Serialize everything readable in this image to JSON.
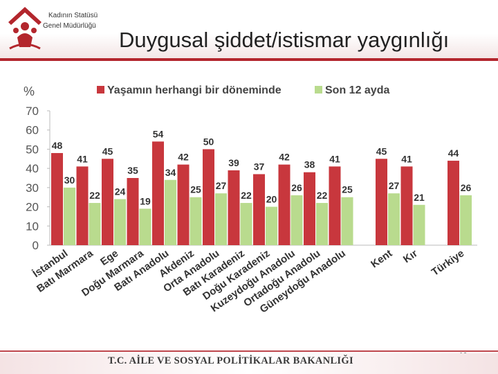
{
  "header": {
    "org_line1": "Kadının Statüsü",
    "org_line2": "Genel Müdürlüğü",
    "title": "Duygusal şiddet/istismar yaygınlığı"
  },
  "footer": {
    "ministry": "T.C. AİLE VE SOSYAL POLİTİKALAR BAKANLIĞI",
    "page_number": "16"
  },
  "colors": {
    "brand": "#b3262d",
    "series_lifetime": "#c8373d",
    "series_last12": "#b9db8e"
  },
  "chart_data": {
    "type": "bar",
    "ylabel": "%",
    "ylim": [
      0,
      70
    ],
    "yticks": [
      0,
      10,
      20,
      30,
      40,
      50,
      60,
      70
    ],
    "legend_position": "top",
    "categories": [
      "İstanbul",
      "Batı Marmara",
      "Ege",
      "Doğu Marmara",
      "Batı Anadolu",
      "Akdeniz",
      "Orta Anadolu",
      "Batı Karadeniz",
      "Doğu Karadeniz",
      "Kuzeydoğu Anadolu",
      "Ortadoğu Anadolu",
      "Güneydoğu Anadolu",
      "Kent",
      "Kır",
      "Türkiye"
    ],
    "groups_gap_before": [
      12,
      14
    ],
    "series": [
      {
        "name": "Yaşamın herhangi bir döneminde",
        "values": [
          48,
          41,
          45,
          35,
          54,
          42,
          50,
          39,
          37,
          42,
          38,
          41,
          45,
          41,
          44
        ]
      },
      {
        "name": "Son 12 ayda",
        "values": [
          30,
          22,
          24,
          19,
          34,
          25,
          27,
          22,
          20,
          26,
          22,
          25,
          27,
          21,
          26
        ]
      }
    ]
  }
}
